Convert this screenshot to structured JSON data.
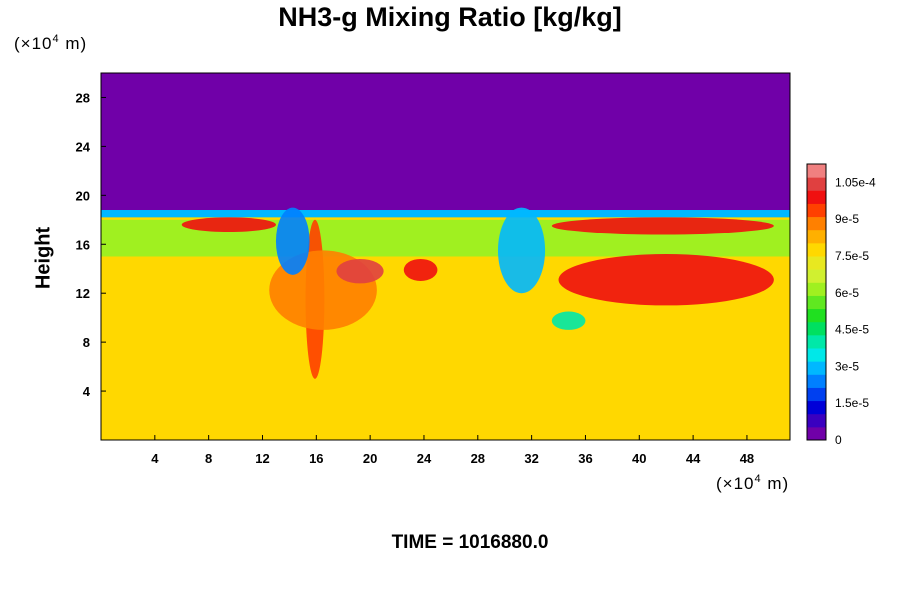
{
  "chart_data": {
    "type": "heatmap",
    "title": "NH3-g Mixing Ratio [kg/kg]",
    "ylabel": "Height",
    "xunit": {
      "prefix": "(×10",
      "exp": "4",
      "suffix": " m)"
    },
    "yunit": {
      "prefix": "(×10",
      "exp": "4",
      "suffix": " m)"
    },
    "xlim": [
      0,
      51.2
    ],
    "ylim": [
      0,
      30
    ],
    "xticks": [
      4,
      8,
      12,
      16,
      20,
      24,
      28,
      32,
      36,
      40,
      44,
      48
    ],
    "yticks": [
      4,
      8,
      12,
      16,
      20,
      24,
      28
    ],
    "colorbar": {
      "labels": [
        "0",
        "1.5e-5",
        "3e-5",
        "4.5e-5",
        "6e-5",
        "7.5e-5",
        "9e-5",
        "1.05e-4"
      ],
      "label_values": [
        0,
        1.5e-05,
        3e-05,
        4.5e-05,
        6e-05,
        7.5e-05,
        9e-05,
        0.000105
      ],
      "range": [
        0,
        0.0001125
      ],
      "colors": [
        "#7000a8",
        "#3a00c0",
        "#0000d8",
        "#0040f0",
        "#0080ff",
        "#00b8ff",
        "#00e8e8",
        "#00e8a8",
        "#00e060",
        "#20e020",
        "#60e820",
        "#a0f020",
        "#d0f030",
        "#e8e820",
        "#ffd800",
        "#ffb000",
        "#ff8000",
        "#ff4000",
        "#f01010",
        "#e04040",
        "#f08080"
      ]
    },
    "background_value": 7.6e-05,
    "upper_region": {
      "y_from": 18.5,
      "value": 0
    },
    "features": [
      {
        "label": "moist band",
        "x": [
          0,
          51.2
        ],
        "y": [
          15.0,
          18.0
        ],
        "value": 6.3e-05
      },
      {
        "label": "top edge band",
        "x": [
          0,
          51.2
        ],
        "y": [
          18.2,
          18.8
        ],
        "value": 3e-05
      },
      {
        "label": "plume 1",
        "x": [
          15.2,
          16.6
        ],
        "y": [
          5.0,
          18.0
        ],
        "value": 9.6e-05
      },
      {
        "label": "plume 1 arc",
        "x": [
          12.5,
          20.5
        ],
        "y": [
          9.0,
          15.5
        ],
        "value": 9e-05
      },
      {
        "label": "high max 1",
        "x": [
          17.5,
          21.0
        ],
        "y": [
          12.8,
          14.8
        ],
        "value": 0.000105
      },
      {
        "label": "high max 2",
        "x": [
          22.5,
          25.0
        ],
        "y": [
          13.0,
          14.8
        ],
        "value": 9.8e-05
      },
      {
        "label": "dry intrusion 1",
        "x": [
          13.0,
          15.5
        ],
        "y": [
          13.5,
          19.0
        ],
        "value": 2.5e-05
      },
      {
        "label": "dry intrusion 2",
        "x": [
          29.5,
          33.0
        ],
        "y": [
          12.0,
          19.0
        ],
        "value": 3e-05
      },
      {
        "label": "upper band 1",
        "x": [
          6.0,
          13.0
        ],
        "y": [
          17.0,
          18.2
        ],
        "value": 9.8e-05
      },
      {
        "label": "upper band 2",
        "x": [
          33.5,
          50.0
        ],
        "y": [
          16.8,
          18.2
        ],
        "value": 9.8e-05
      },
      {
        "label": "vortex max",
        "x": [
          34.0,
          50.0
        ],
        "y": [
          11.0,
          15.2
        ],
        "value": 0.0001
      },
      {
        "label": "vortex min",
        "x": [
          33.5,
          36.0
        ],
        "y": [
          9.0,
          10.5
        ],
        "value": 4.2e-05
      }
    ]
  },
  "footer": {
    "time_text": "TIME = 1016880.0"
  }
}
